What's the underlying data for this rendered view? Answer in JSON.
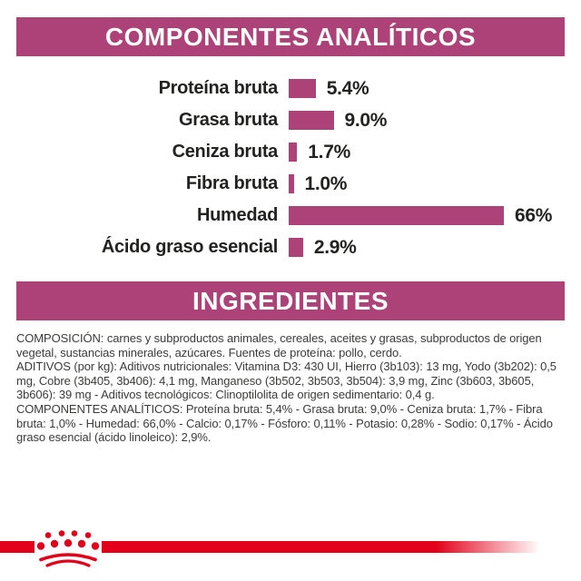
{
  "sections": {
    "analytical_title": "COMPONENTES ANALÍTICOS",
    "ingredients_title": "INGREDIENTES"
  },
  "chart_data": {
    "type": "bar",
    "orientation": "horizontal",
    "title": "COMPONENTES ANALÍTICOS",
    "categories": [
      "Proteína bruta",
      "Grasa bruta",
      "Ceniza bruta",
      "Fibra bruta",
      "Humedad",
      "Ácido graso esencial"
    ],
    "values": [
      5.4,
      9.0,
      1.7,
      1.0,
      66,
      2.9
    ],
    "value_labels": [
      "5.4%",
      "9.0%",
      "1.7%",
      "1.0%",
      "66%",
      "2.9%"
    ],
    "unit": "%",
    "bar_color": "#ac4277",
    "axis": "none",
    "grid": false,
    "legend": false,
    "layout_note": "bar length proportional to value; longest bar (66%) clamped to chart width"
  },
  "ingredients_text": {
    "paragraphs": [
      "COMPOSICIÓN: carnes y subproductos animales, cereales, aceites y grasas, subproductos de origen vegetal, sustancias minerales, azúcares. Fuentes de proteína: pollo, cerdo.",
      "ADITIVOS (por kg): Aditivos nutricionales: Vitamina D3: 430 UI, Hierro (3b103): 13 mg, Yodo (3b202): 0,5 mg, Cobre (3b405, 3b406): 4,1 mg, Manganeso (3b502, 3b503, 3b504): 3,9 mg, Zinc (3b603, 3b605, 3b606): 39 mg - Aditivos tecnológicos: Clinoptilolita de origen sedimentario: 0,4 g.",
      "COMPONENTES ANALÍTICOS: Proteína bruta: 5,4% - Grasa bruta: 9,0% - Ceniza bruta: 1,7% - Fibra bruta: 1,0% - Humedad: 66,0% - Calcio: 0,17% - Fósforo: 0,11% - Potasio: 0,28% - Sodio: 0,17% - Ácido graso esencial (ácido linoleico): 2,9%."
    ]
  },
  "colors": {
    "banner": "#ac4277",
    "bar": "#ac4277",
    "brand_red": "#e2001a",
    "body_text": "#3b3b3a",
    "chart_text": "#222221"
  },
  "brand": {
    "logo": "royal-canin-crown"
  }
}
